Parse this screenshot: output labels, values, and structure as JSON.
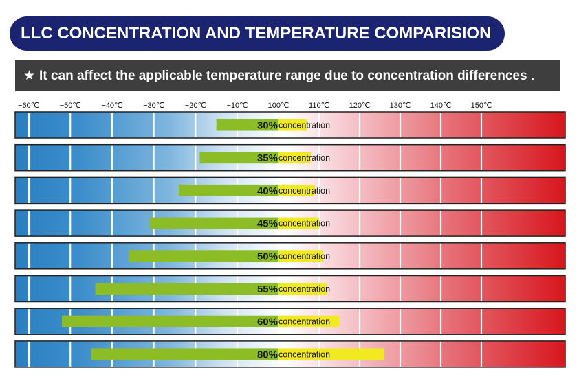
{
  "header": {
    "title": "LLC CONCENTRATION AND TEMPERATURE COMPARISION"
  },
  "note": {
    "star": "★",
    "text": "It can affect the applicable temperature range due to concentration differences ."
  },
  "colors": {
    "title_bg": "#1a2470",
    "note_bg": "#3e3e3e",
    "cold": "#2a7fc1",
    "mid": "#ffffff",
    "hot": "#d8161d",
    "bar_green": "#8cbd27",
    "bar_yellow": "#f1ea22"
  },
  "chart_data": {
    "type": "bar",
    "orientation": "horizontal",
    "title": "LLC CONCENTRATION AND TEMPERATURE COMPARISION",
    "xlabel": "",
    "ylabel": "",
    "x_tick_labels": [
      "−60℃",
      "−50℃",
      "−40℃",
      "−30℃",
      "−20℃",
      "−10℃",
      "100℃",
      "110℃",
      "120℃",
      "130℃",
      "140℃",
      "150℃"
    ],
    "x_ticks": [
      -60,
      -50,
      -40,
      -30,
      -20,
      -10,
      100,
      110,
      120,
      130,
      140,
      150
    ],
    "series": [
      {
        "categories": [
          "30%",
          "35%",
          "40%",
          "45%",
          "50%",
          "55%",
          "60%",
          "80%"
        ],
        "category_suffix": "concentration",
        "low": [
          -15,
          -19,
          -24,
          -31,
          -36,
          -44,
          -52,
          -45
        ],
        "high": [
          107,
          108,
          109,
          110,
          111,
          112,
          115,
          126
        ]
      }
    ],
    "grid": true
  }
}
